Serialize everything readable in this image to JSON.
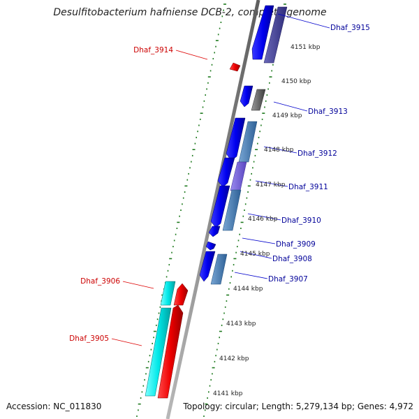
{
  "title": "Desulfitobacterium hafniense DCB-2, complete genome",
  "footer": {
    "accession": "Accession: NC_011830",
    "summary": "Topology: circular; Length: 5,279,134 bp; Genes: 4,972"
  },
  "colors": {
    "backbone": "#8a8a8a",
    "tick": "#1e7a1e",
    "forward_cds": "#1010ee",
    "rna": "#00e8e8",
    "reverse_cds": "#ee0000",
    "label_line_red": "#dd0000",
    "label_line_blue": "#0000cc"
  },
  "kbp_labels": [
    "4151 kbp",
    "4150 kbp",
    "4149 kbp",
    "4148 kbp",
    "4147 kbp",
    "4146 kbp",
    "4145 kbp",
    "4144 kbp",
    "4143 kbp",
    "4142 kbp",
    "4141 kbp"
  ],
  "genes": [
    {
      "name": "Dhaf_3915",
      "strand": "forward"
    },
    {
      "name": "Dhaf_3914",
      "strand": "reverse"
    },
    {
      "name": "Dhaf_3913",
      "strand": "forward"
    },
    {
      "name": "Dhaf_3912",
      "strand": "forward"
    },
    {
      "name": "Dhaf_3911",
      "strand": "forward"
    },
    {
      "name": "Dhaf_3910",
      "strand": "forward"
    },
    {
      "name": "Dhaf_3909",
      "strand": "forward"
    },
    {
      "name": "Dhaf_3908",
      "strand": "forward"
    },
    {
      "name": "Dhaf_3907",
      "strand": "forward"
    },
    {
      "name": "Dhaf_3906",
      "strand": "reverse"
    },
    {
      "name": "Dhaf_3905",
      "strand": "reverse"
    }
  ]
}
